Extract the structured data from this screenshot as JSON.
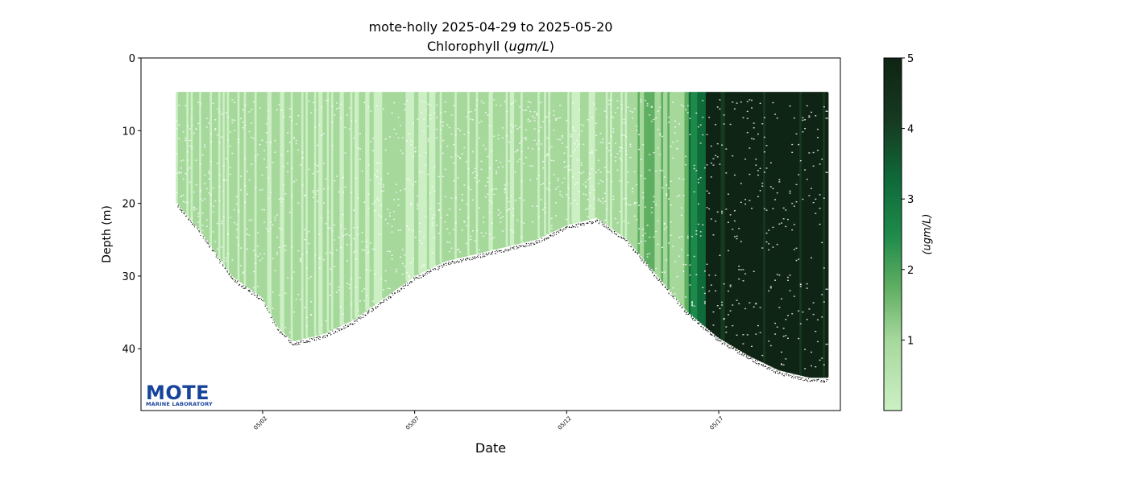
{
  "title_line1": "mote-holly 2025-04-29 to 2025-05-20",
  "title_line2_prefix": "Chlorophyll (",
  "title_line2_unit": "ugm/L",
  "title_line2_suffix": ")",
  "logo": {
    "word": "MOTE",
    "subtitle": "MARINE LABORATORY"
  },
  "chart_data": {
    "type": "scatter",
    "title": "mote-holly 2025-04-29 to 2025-05-20\nChlorophyll (ugm/L)",
    "xlabel": "Date",
    "ylabel": "Depth (m)",
    "x_ticks": [
      "05/02",
      "05/07",
      "05/12",
      "05/17"
    ],
    "y_ticks": [
      0,
      10,
      20,
      30,
      40
    ],
    "xlim": [
      "2025-04-28",
      "2025-05-21"
    ],
    "ylim": [
      48.5,
      0
    ],
    "y_inverted": true,
    "grid": false,
    "colorbar": {
      "label": "(ugm/L)",
      "range": [
        0,
        5
      ],
      "ticks": [
        1,
        2,
        3,
        4,
        5
      ],
      "colormap": "Greens (light to dark)",
      "colors": [
        "#ccf0c4",
        "#a6d89c",
        "#5fae62",
        "#1e8a4a",
        "#0f6b3a",
        "#163a20",
        "#0f2414"
      ]
    },
    "data_coverage": {
      "date_range": [
        "2025-04-29",
        "2025-05-20"
      ],
      "top_depth_m": 5,
      "bottom_depth_profile": [
        {
          "date": "2025-04-29",
          "depth": 19
        },
        {
          "date": "2025-04-30",
          "depth": 24
        },
        {
          "date": "2025-05-01",
          "depth": 30
        },
        {
          "date": "2025-05-02",
          "depth": 33
        },
        {
          "date": "2025-05-02.5",
          "depth": 37
        },
        {
          "date": "2025-05-03",
          "depth": 39
        },
        {
          "date": "2025-05-04",
          "depth": 38
        },
        {
          "date": "2025-05-05",
          "depth": 36
        },
        {
          "date": "2025-05-06",
          "depth": 33
        },
        {
          "date": "2025-05-07",
          "depth": 30
        },
        {
          "date": "2025-05-08",
          "depth": 28
        },
        {
          "date": "2025-05-09",
          "depth": 27
        },
        {
          "date": "2025-05-10",
          "depth": 26
        },
        {
          "date": "2025-05-11",
          "depth": 25
        },
        {
          "date": "2025-05-12",
          "depth": 23
        },
        {
          "date": "2025-05-13",
          "depth": 22
        },
        {
          "date": "2025-05-14",
          "depth": 25
        },
        {
          "date": "2025-05-15",
          "depth": 30
        },
        {
          "date": "2025-05-16",
          "depth": 35
        },
        {
          "date": "2025-05-17",
          "depth": 38.5
        },
        {
          "date": "2025-05-18",
          "depth": 41
        },
        {
          "date": "2025-05-19",
          "depth": 43
        },
        {
          "date": "2025-05-20",
          "depth": 44
        }
      ],
      "chlorophyll_by_period": [
        {
          "from": "2025-04-29",
          "to": "2025-05-14",
          "value_range": [
            0.1,
            1.0
          ]
        },
        {
          "from": "2025-05-14",
          "to": "2025-05-16",
          "value_range": [
            0.8,
            1.5
          ]
        },
        {
          "from": "2025-05-16",
          "to": "2025-05-16.6",
          "value_range": [
            2.0,
            3.5
          ]
        },
        {
          "from": "2025-05-16.6",
          "to": "2025-05-20",
          "value_range": [
            4.5,
            5.0
          ]
        }
      ]
    }
  }
}
